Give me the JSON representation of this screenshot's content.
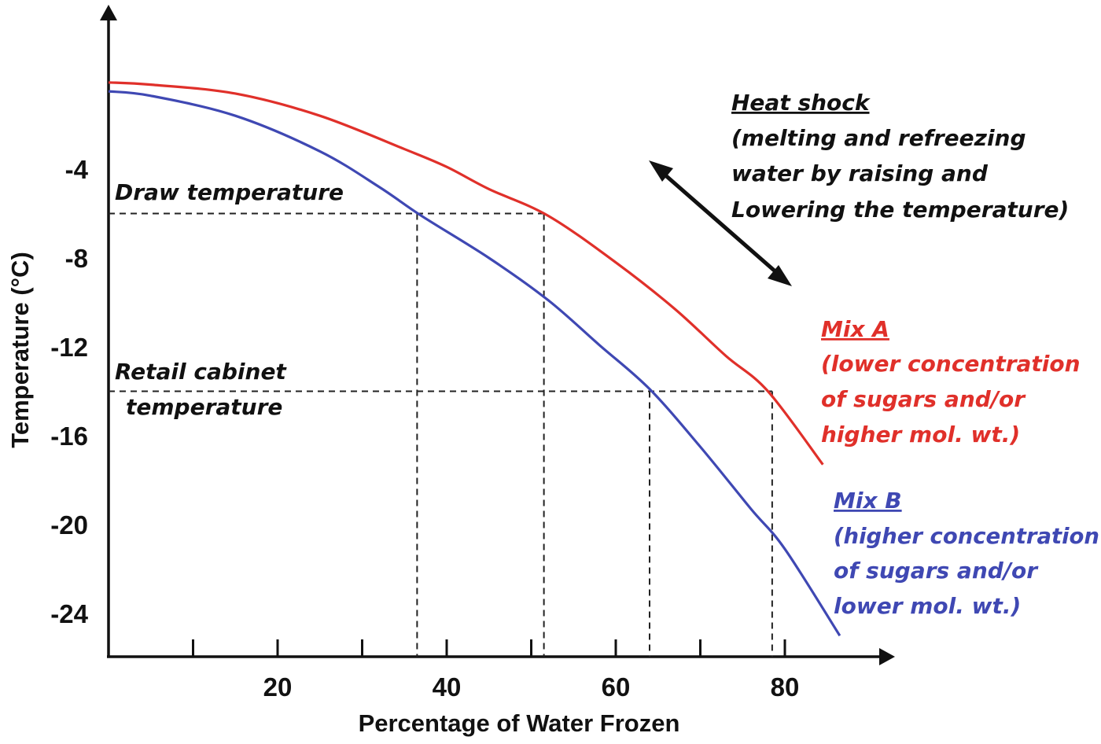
{
  "chart_data": {
    "type": "line",
    "title": "",
    "xlabel": "Percentage of Water Frozen",
    "ylabel": "Temperature (°C)",
    "xlim": [
      0,
      92
    ],
    "ylim": [
      -26,
      2
    ],
    "x_ticks": [
      10,
      20,
      30,
      40,
      50,
      60,
      70,
      80
    ],
    "x_tick_labels": [
      {
        "x": 20,
        "label": "20"
      },
      {
        "x": 40,
        "label": "40"
      },
      {
        "x": 60,
        "label": "60"
      },
      {
        "x": 80,
        "label": "80"
      }
    ],
    "y_tick_labels": [
      {
        "y": -4,
        "label": "-4"
      },
      {
        "y": -8,
        "label": "-8"
      },
      {
        "y": -12,
        "label": "-12"
      },
      {
        "y": -16,
        "label": "-16"
      },
      {
        "y": -20,
        "label": "-20"
      },
      {
        "y": -24,
        "label": "-24"
      }
    ],
    "grid": false,
    "series": [
      {
        "name": "Mix A",
        "color": "#e0302a",
        "x": [
          0,
          5,
          15,
          25,
          35,
          40,
          45,
          52,
          60,
          67,
          73,
          78,
          84.5
        ],
        "y": [
          -0.1,
          -0.2,
          -0.6,
          -1.6,
          -3.1,
          -3.9,
          -4.9,
          -6.1,
          -8.2,
          -10.3,
          -12.4,
          -14.0,
          -17.3
        ]
      },
      {
        "name": "Mix B",
        "color": "#3f48b3",
        "x": [
          0,
          5,
          15,
          25,
          32,
          37,
          45,
          52,
          58,
          64,
          70,
          76,
          80,
          86.5
        ],
        "y": [
          -0.5,
          -0.7,
          -1.6,
          -3.2,
          -4.8,
          -6.1,
          -8.0,
          -9.9,
          -11.9,
          -13.9,
          -16.5,
          -19.3,
          -21.1,
          -25.0
        ]
      }
    ],
    "reference_lines": [
      {
        "label": "Draw temperature",
        "y": -6.0,
        "x_points": [
          36.5,
          51.5
        ]
      },
      {
        "label_lines": [
          "Retail cabinet",
          "temperature"
        ],
        "y": -14.0,
        "x_points": [
          64.0,
          78.5
        ]
      }
    ],
    "annotations": {
      "heat_shock": {
        "title": "Heat shock",
        "lines": [
          "(melting and refreezing",
          "water by raising and",
          "Lowering the temperature)"
        ]
      },
      "mix_a": {
        "title": "Mix A",
        "lines": [
          "(lower concentration",
          "of sugars and/or",
          "higher mol. wt.)"
        ],
        "color": "#e0302a"
      },
      "mix_b": {
        "title": "Mix B",
        "lines": [
          "(higher concentration",
          "of sugars and/or",
          "lower mol. wt.)"
        ],
        "color": "#3f48b3"
      }
    }
  }
}
